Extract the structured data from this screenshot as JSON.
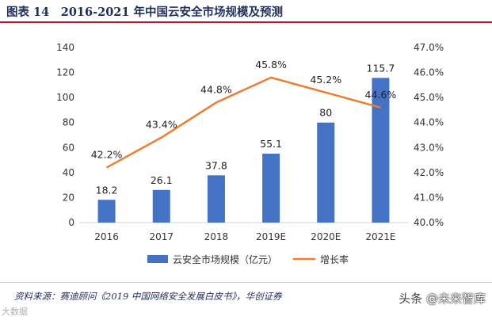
{
  "header": {
    "title": "图表 14　2016-2021 年中国云安全市场规模及预测"
  },
  "footer": {
    "source": "资料来源：赛迪顾问《2019 中国网络安全发展白皮书》，华创证券",
    "watermark_left": "大数据",
    "watermark_right_prefix": "头条",
    "watermark_right_brand": "@未来智库"
  },
  "colors": {
    "bar": "#4472c4",
    "line": "#ed7d31",
    "title": "#1f2f5c",
    "rule": "#b3182c"
  },
  "chart_data": {
    "type": "bar+line",
    "title": "2016-2021 年中国云安全市场规模及预测",
    "categories": [
      "2016",
      "2017",
      "2018",
      "2019E",
      "2020E",
      "2021E"
    ],
    "series": [
      {
        "name": "云安全市场规模（亿元）",
        "type": "bar",
        "axis": "left",
        "values": [
          18.2,
          26.1,
          37.8,
          55.1,
          80,
          115.7
        ],
        "labels": [
          "18.2",
          "26.1",
          "37.8",
          "55.1",
          "80",
          "115.7"
        ]
      },
      {
        "name": "增长率",
        "type": "line",
        "axis": "right",
        "values": [
          42.2,
          43.4,
          44.8,
          45.8,
          45.2,
          44.6
        ],
        "labels": [
          "42.2%",
          "43.4%",
          "44.8%",
          "45.8%",
          "45.2%",
          "44.6%"
        ]
      }
    ],
    "y_left": {
      "min": 0,
      "max": 140,
      "ticks": [
        "0",
        "20",
        "40",
        "60",
        "80",
        "100",
        "120",
        "140"
      ]
    },
    "y_right": {
      "min": 40,
      "max": 47,
      "ticks": [
        "40.0%",
        "41.0%",
        "42.0%",
        "43.0%",
        "44.0%",
        "45.0%",
        "46.0%",
        "47.0%"
      ]
    },
    "legend": {
      "position": "bottom",
      "items": [
        "云安全市场规模（亿元）",
        "增长率"
      ]
    },
    "grid": false
  }
}
